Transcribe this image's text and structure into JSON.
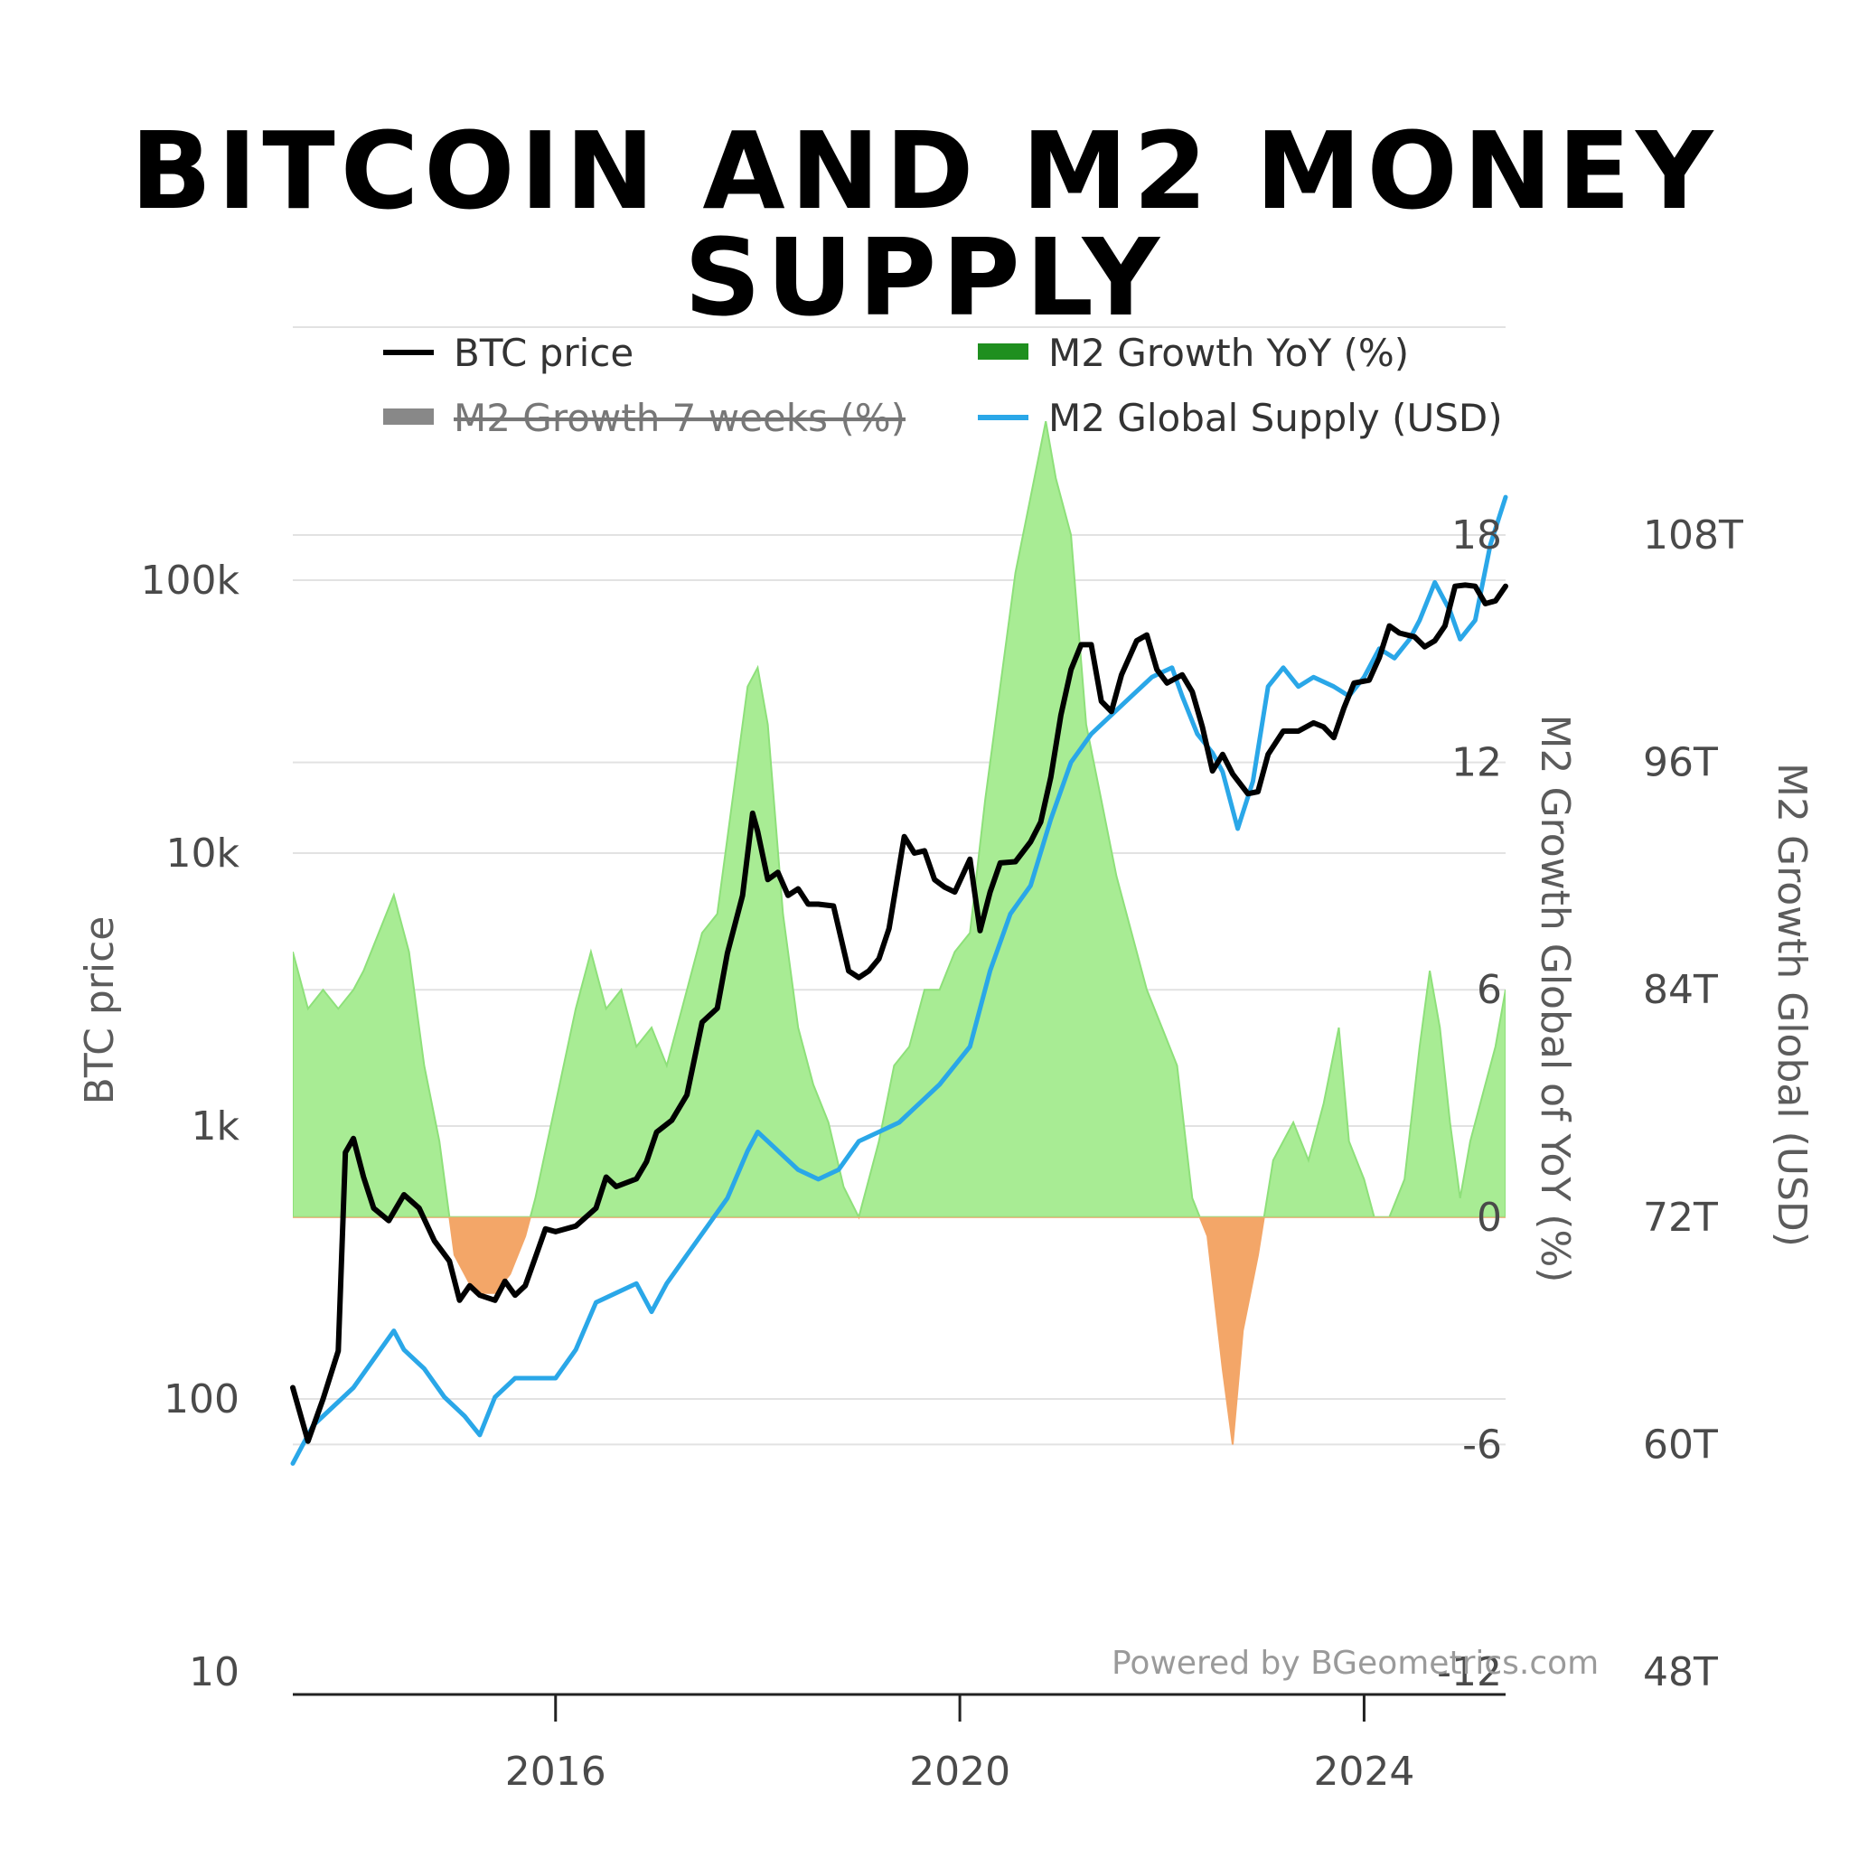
{
  "title": "BITCOIN AND M2 MONEY SUPPLY",
  "credit": "Powered by BGeometrics.com",
  "chart_data": {
    "type": "line",
    "x_range": [
      2013.4,
      2025.4
    ],
    "x_ticks": [
      "2016",
      "2020",
      "2024"
    ],
    "left_axis": {
      "label": "BTC price",
      "scale": "log",
      "range": [
        10,
        300000
      ],
      "ticks": [
        "10",
        "100",
        "1k",
        "10k",
        "100k"
      ]
    },
    "right_axis_1": {
      "label": "M2 Growth Global of YoY (%)",
      "range": [
        -12,
        18
      ],
      "ticks": [
        "-12",
        "-6",
        "0",
        "6",
        "12",
        "18"
      ]
    },
    "right_axis_2": {
      "label": "M2 Growth Global (USD)",
      "range": [
        48,
        108
      ],
      "ticks": [
        "48T",
        "60T",
        "72T",
        "84T",
        "96T",
        "108T"
      ]
    },
    "legend": [
      {
        "label": "BTC price",
        "color": "#000000",
        "active": true
      },
      {
        "label": "M2 Growth YoY (%)",
        "color": "#1f8f1f",
        "active": true
      },
      {
        "label": "M2 Growth 7 weeks (%)",
        "color": "#888888",
        "active": false
      },
      {
        "label": "M2 Global Supply (USD)",
        "color": "#2aa7e8",
        "active": true
      }
    ],
    "colors": {
      "positive_fill": "#a8ec94",
      "positive_stroke": "#8ee07a",
      "negative_fill": "#f3a668",
      "btc": "#000000",
      "m2": "#2aa7e8",
      "grid": "#e2e2e2"
    },
    "series": [
      {
        "name": "BTC price",
        "axis": "left",
        "points": [
          [
            2013.4,
            110
          ],
          [
            2013.55,
            70
          ],
          [
            2013.7,
            100
          ],
          [
            2013.85,
            150
          ],
          [
            2013.92,
            800
          ],
          [
            2014.0,
            900
          ],
          [
            2014.1,
            650
          ],
          [
            2014.2,
            500
          ],
          [
            2014.35,
            450
          ],
          [
            2014.5,
            560
          ],
          [
            2014.65,
            500
          ],
          [
            2014.8,
            380
          ],
          [
            2014.95,
            320
          ],
          [
            2015.05,
            230
          ],
          [
            2015.15,
            260
          ],
          [
            2015.25,
            240
          ],
          [
            2015.4,
            230
          ],
          [
            2015.5,
            270
          ],
          [
            2015.6,
            240
          ],
          [
            2015.7,
            260
          ],
          [
            2015.8,
            330
          ],
          [
            2015.9,
            420
          ],
          [
            2016.0,
            410
          ],
          [
            2016.2,
            430
          ],
          [
            2016.4,
            500
          ],
          [
            2016.5,
            650
          ],
          [
            2016.6,
            600
          ],
          [
            2016.8,
            640
          ],
          [
            2016.9,
            740
          ],
          [
            2017.0,
            950
          ],
          [
            2017.15,
            1050
          ],
          [
            2017.3,
            1300
          ],
          [
            2017.45,
            2400
          ],
          [
            2017.6,
            2700
          ],
          [
            2017.7,
            4300
          ],
          [
            2017.85,
            7000
          ],
          [
            2017.95,
            14000
          ],
          [
            2018.0,
            12000
          ],
          [
            2018.1,
            8000
          ],
          [
            2018.2,
            8500
          ],
          [
            2018.3,
            7000
          ],
          [
            2018.4,
            7400
          ],
          [
            2018.5,
            6500
          ],
          [
            2018.6,
            6500
          ],
          [
            2018.75,
            6400
          ],
          [
            2018.9,
            3700
          ],
          [
            2019.0,
            3500
          ],
          [
            2019.1,
            3700
          ],
          [
            2019.2,
            4100
          ],
          [
            2019.3,
            5300
          ],
          [
            2019.45,
            11500
          ],
          [
            2019.55,
            10000
          ],
          [
            2019.65,
            10200
          ],
          [
            2019.75,
            8000
          ],
          [
            2019.85,
            7500
          ],
          [
            2019.95,
            7200
          ],
          [
            2020.1,
            9500
          ],
          [
            2020.2,
            5200
          ],
          [
            2020.3,
            7200
          ],
          [
            2020.4,
            9200
          ],
          [
            2020.55,
            9300
          ],
          [
            2020.7,
            11000
          ],
          [
            2020.8,
            13000
          ],
          [
            2020.9,
            19000
          ],
          [
            2021.0,
            32000
          ],
          [
            2021.1,
            47000
          ],
          [
            2021.2,
            58000
          ],
          [
            2021.3,
            58000
          ],
          [
            2021.4,
            36000
          ],
          [
            2021.5,
            33000
          ],
          [
            2021.6,
            45000
          ],
          [
            2021.75,
            60000
          ],
          [
            2021.85,
            63000
          ],
          [
            2021.95,
            47000
          ],
          [
            2022.05,
            42000
          ],
          [
            2022.2,
            45000
          ],
          [
            2022.3,
            39000
          ],
          [
            2022.4,
            29000
          ],
          [
            2022.5,
            20000
          ],
          [
            2022.6,
            23000
          ],
          [
            2022.7,
            19500
          ],
          [
            2022.85,
            16500
          ],
          [
            2022.95,
            16800
          ],
          [
            2023.05,
            23000
          ],
          [
            2023.2,
            28000
          ],
          [
            2023.35,
            28000
          ],
          [
            2023.5,
            30000
          ],
          [
            2023.6,
            29000
          ],
          [
            2023.7,
            26500
          ],
          [
            2023.8,
            34000
          ],
          [
            2023.9,
            42000
          ],
          [
            2024.05,
            43000
          ],
          [
            2024.15,
            52000
          ],
          [
            2024.25,
            68000
          ],
          [
            2024.35,
            64000
          ],
          [
            2024.5,
            62000
          ],
          [
            2024.6,
            57000
          ],
          [
            2024.7,
            60000
          ],
          [
            2024.8,
            68000
          ],
          [
            2024.9,
            95000
          ],
          [
            2025.0,
            96000
          ],
          [
            2025.1,
            95000
          ],
          [
            2025.2,
            82000
          ],
          [
            2025.3,
            84000
          ],
          [
            2025.4,
            95000
          ]
        ]
      },
      {
        "name": "M2 Growth YoY (%)",
        "axis": "right_1",
        "points": [
          [
            2013.4,
            7
          ],
          [
            2013.55,
            5.5
          ],
          [
            2013.7,
            6
          ],
          [
            2013.85,
            5.5
          ],
          [
            2014.0,
            6
          ],
          [
            2014.1,
            6.5
          ],
          [
            2014.25,
            7.5
          ],
          [
            2014.4,
            8.5
          ],
          [
            2014.55,
            7
          ],
          [
            2014.7,
            4
          ],
          [
            2014.85,
            2
          ],
          [
            2015.0,
            -1
          ],
          [
            2015.2,
            -2
          ],
          [
            2015.4,
            -2
          ],
          [
            2015.55,
            -1.5
          ],
          [
            2015.7,
            -0.5
          ],
          [
            2015.8,
            0.5
          ],
          [
            2016.0,
            3
          ],
          [
            2016.2,
            5.5
          ],
          [
            2016.35,
            7
          ],
          [
            2016.5,
            5.5
          ],
          [
            2016.65,
            6
          ],
          [
            2016.8,
            4.5
          ],
          [
            2016.95,
            5
          ],
          [
            2017.1,
            4
          ],
          [
            2017.25,
            5.5
          ],
          [
            2017.45,
            7.5
          ],
          [
            2017.6,
            8
          ],
          [
            2017.75,
            11
          ],
          [
            2017.9,
            14
          ],
          [
            2018.0,
            14.5
          ],
          [
            2018.1,
            13
          ],
          [
            2018.25,
            8
          ],
          [
            2018.4,
            5
          ],
          [
            2018.55,
            3.5
          ],
          [
            2018.7,
            2.5
          ],
          [
            2018.85,
            0.8
          ],
          [
            2019.0,
            0
          ],
          [
            2019.2,
            2
          ],
          [
            2019.35,
            4
          ],
          [
            2019.5,
            4.5
          ],
          [
            2019.65,
            6
          ],
          [
            2019.8,
            6
          ],
          [
            2019.95,
            7
          ],
          [
            2020.1,
            7.5
          ],
          [
            2020.25,
            11
          ],
          [
            2020.4,
            14
          ],
          [
            2020.55,
            17
          ],
          [
            2020.7,
            19
          ],
          [
            2020.85,
            21
          ],
          [
            2020.95,
            19.5
          ],
          [
            2021.1,
            18
          ],
          [
            2021.25,
            13
          ],
          [
            2021.4,
            11
          ],
          [
            2021.55,
            9
          ],
          [
            2021.7,
            7.5
          ],
          [
            2021.85,
            6
          ],
          [
            2022.0,
            5
          ],
          [
            2022.15,
            4
          ],
          [
            2022.3,
            0.5
          ],
          [
            2022.45,
            -0.5
          ],
          [
            2022.6,
            -4
          ],
          [
            2022.7,
            -6
          ],
          [
            2022.8,
            -3
          ],
          [
            2022.95,
            -1
          ],
          [
            2023.1,
            1.5
          ],
          [
            2023.3,
            2.5
          ],
          [
            2023.45,
            1.5
          ],
          [
            2023.6,
            3
          ],
          [
            2023.75,
            5
          ],
          [
            2023.85,
            2
          ],
          [
            2024.0,
            1
          ],
          [
            2024.1,
            0
          ],
          [
            2024.25,
            0
          ],
          [
            2024.4,
            1
          ],
          [
            2024.55,
            4.5
          ],
          [
            2024.65,
            6.5
          ],
          [
            2024.75,
            5
          ],
          [
            2024.85,
            2.5
          ],
          [
            2024.95,
            0.5
          ],
          [
            2025.05,
            2
          ],
          [
            2025.2,
            3.5
          ],
          [
            2025.3,
            4.5
          ],
          [
            2025.4,
            6
          ]
        ]
      },
      {
        "name": "M2 Global Supply (USD)",
        "axis": "right_2",
        "points": [
          [
            2013.4,
            59
          ],
          [
            2013.6,
            61
          ],
          [
            2013.8,
            62
          ],
          [
            2014.0,
            63
          ],
          [
            2014.2,
            64.5
          ],
          [
            2014.4,
            66
          ],
          [
            2014.5,
            65
          ],
          [
            2014.7,
            64
          ],
          [
            2014.9,
            62.5
          ],
          [
            2015.1,
            61.5
          ],
          [
            2015.25,
            60.5
          ],
          [
            2015.4,
            62.5
          ],
          [
            2015.6,
            63.5
          ],
          [
            2015.8,
            63.5
          ],
          [
            2016.0,
            63.5
          ],
          [
            2016.2,
            65
          ],
          [
            2016.4,
            67.5
          ],
          [
            2016.6,
            68
          ],
          [
            2016.8,
            68.5
          ],
          [
            2016.95,
            67
          ],
          [
            2017.1,
            68.5
          ],
          [
            2017.3,
            70
          ],
          [
            2017.5,
            71.5
          ],
          [
            2017.7,
            73
          ],
          [
            2017.9,
            75.5
          ],
          [
            2018.0,
            76.5
          ],
          [
            2018.2,
            75.5
          ],
          [
            2018.4,
            74.5
          ],
          [
            2018.6,
            74
          ],
          [
            2018.8,
            74.5
          ],
          [
            2019.0,
            76
          ],
          [
            2019.2,
            76.5
          ],
          [
            2019.4,
            77
          ],
          [
            2019.6,
            78
          ],
          [
            2019.8,
            79
          ],
          [
            2019.95,
            80
          ],
          [
            2020.1,
            81
          ],
          [
            2020.3,
            85
          ],
          [
            2020.5,
            88
          ],
          [
            2020.7,
            89.5
          ],
          [
            2020.9,
            93
          ],
          [
            2021.1,
            96
          ],
          [
            2021.3,
            97.5
          ],
          [
            2021.5,
            98.5
          ],
          [
            2021.7,
            99.5
          ],
          [
            2021.9,
            100.5
          ],
          [
            2022.1,
            101
          ],
          [
            2022.2,
            99.5
          ],
          [
            2022.35,
            97.5
          ],
          [
            2022.5,
            96.5
          ],
          [
            2022.6,
            95.5
          ],
          [
            2022.75,
            92.5
          ],
          [
            2022.9,
            95
          ],
          [
            2023.05,
            100
          ],
          [
            2023.2,
            101
          ],
          [
            2023.35,
            100
          ],
          [
            2023.5,
            100.5
          ],
          [
            2023.7,
            100
          ],
          [
            2023.85,
            99.5
          ],
          [
            2024.0,
            100.5
          ],
          [
            2024.15,
            102
          ],
          [
            2024.3,
            101.5
          ],
          [
            2024.45,
            102.5
          ],
          [
            2024.55,
            103.5
          ],
          [
            2024.7,
            105.5
          ],
          [
            2024.85,
            104
          ],
          [
            2024.95,
            102.5
          ],
          [
            2025.1,
            103.5
          ],
          [
            2025.25,
            107.5
          ],
          [
            2025.4,
            110
          ]
        ]
      }
    ]
  }
}
